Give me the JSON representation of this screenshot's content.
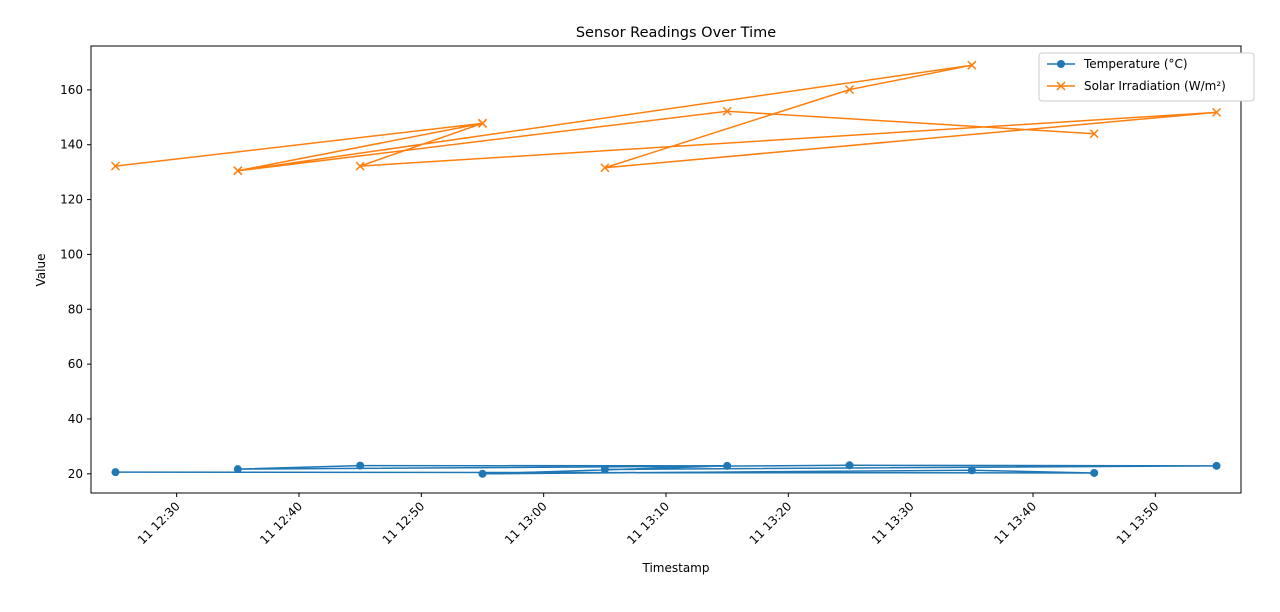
{
  "chart_data": {
    "type": "line",
    "title": "Sensor Readings Over Time",
    "xlabel": "Timestamp",
    "ylabel": "Value",
    "x_unit": "minutes",
    "x_ticks": [
      {
        "minute": 750,
        "label": "11 12:30"
      },
      {
        "minute": 760,
        "label": "11 12:40"
      },
      {
        "minute": 770,
        "label": "11 12:50"
      },
      {
        "minute": 780,
        "label": "11 13:00"
      },
      {
        "minute": 790,
        "label": "11 13:10"
      },
      {
        "minute": 800,
        "label": "11 13:20"
      },
      {
        "minute": 810,
        "label": "11 13:30"
      },
      {
        "minute": 820,
        "label": "11 13:40"
      },
      {
        "minute": 830,
        "label": "11 13:50"
      }
    ],
    "y_ticks": [
      20,
      40,
      60,
      80,
      100,
      120,
      140,
      160
    ],
    "xlim": [
      743,
      837
    ],
    "ylim": [
      13,
      176
    ],
    "legend_position": "top-right",
    "series": [
      {
        "name": "Temperature (°C)",
        "color": "#1f77b4",
        "marker": "circle",
        "x": [
          745,
          825,
          815,
          775,
          795,
          765,
          755,
          805,
          835,
          785
        ],
        "y": [
          20.6,
          20.3,
          21.3,
          20.0,
          22.9,
          23.0,
          21.7,
          23.1,
          22.9,
          21.6
        ]
      },
      {
        "name": "Solar Irradiation (W/m²)",
        "color": "#ff7f0e",
        "marker": "x",
        "x": [
          745,
          775,
          755,
          815,
          805,
          785,
          835,
          765,
          775,
          755,
          795,
          825
        ],
        "y": [
          132.2,
          147.8,
          130.5,
          169.0,
          160.1,
          131.6,
          151.8,
          132.2,
          147.8,
          130.5,
          152.2,
          144.0
        ]
      }
    ]
  }
}
